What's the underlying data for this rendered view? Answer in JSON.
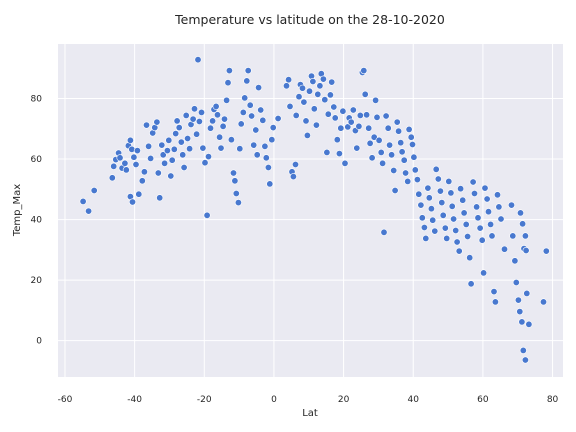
{
  "chart_data": {
    "type": "scatter",
    "title": "Temperature vs latitude on the 28-10-2020",
    "xlabel": "Lat",
    "ylabel": "Temp_Max",
    "xlim": [
      -62,
      83
    ],
    "ylim": [
      -12,
      98
    ],
    "xticks": [
      -60,
      -40,
      -20,
      0,
      20,
      40,
      60,
      80
    ],
    "yticks": [
      0,
      20,
      40,
      60,
      80
    ],
    "grid": true,
    "style": "seaborn-darkgrid",
    "colors": {
      "background": "#EAEAF2",
      "grid": "#FFFFFF",
      "point": "#4878CF",
      "point_edge": "#FFFFFF",
      "text": "#262626"
    },
    "points": [
      [
        -54.8,
        46
      ],
      [
        -53.2,
        42.8
      ],
      [
        -51.6,
        49.6
      ],
      [
        -46.4,
        53.8
      ],
      [
        -46,
        57.6
      ],
      [
        -45.4,
        59.8
      ],
      [
        -44.6,
        62
      ],
      [
        -44.2,
        60.4
      ],
      [
        -43.6,
        57
      ],
      [
        -42.8,
        58.6
      ],
      [
        -42.4,
        56.4
      ],
      [
        -41.8,
        64.4
      ],
      [
        -41.2,
        66.2
      ],
      [
        -40.8,
        63.2
      ],
      [
        -40.2,
        60.6
      ],
      [
        -39.6,
        58.2
      ],
      [
        -39.2,
        62.8
      ],
      [
        -41.2,
        47.6
      ],
      [
        -40.6,
        45.8
      ],
      [
        -38.8,
        48.4
      ],
      [
        -37.8,
        52.8
      ],
      [
        -37.2,
        55.8
      ],
      [
        -36.6,
        71.2
      ],
      [
        -36,
        64.2
      ],
      [
        -35.4,
        60.2
      ],
      [
        -34.8,
        68.6
      ],
      [
        -34.2,
        70.4
      ],
      [
        -33.6,
        72.2
      ],
      [
        -33.2,
        55.4
      ],
      [
        -32.8,
        47.2
      ],
      [
        -32.2,
        64.6
      ],
      [
        -31.8,
        61.4
      ],
      [
        -31.4,
        58.6
      ],
      [
        -30.6,
        62.8
      ],
      [
        -30.2,
        66.2
      ],
      [
        -29.6,
        54.4
      ],
      [
        -29.2,
        59.6
      ],
      [
        -28.6,
        63.2
      ],
      [
        -28.2,
        68.4
      ],
      [
        -27.8,
        72.6
      ],
      [
        -27.2,
        70.4
      ],
      [
        -26.6,
        65.6
      ],
      [
        -26.2,
        61.4
      ],
      [
        -25.8,
        57.2
      ],
      [
        -25.2,
        74.4
      ],
      [
        -24.8,
        66.8
      ],
      [
        -24.2,
        63.4
      ],
      [
        -23.8,
        71.4
      ],
      [
        -23.2,
        73.2
      ],
      [
        -22.8,
        76.6
      ],
      [
        -22.2,
        68.2
      ],
      [
        -21.8,
        92.8
      ],
      [
        -21.4,
        72.4
      ],
      [
        -20.8,
        75.4
      ],
      [
        -20.4,
        63.6
      ],
      [
        -19.8,
        58.8
      ],
      [
        -19.2,
        41.4
      ],
      [
        -18.8,
        60.8
      ],
      [
        -18.2,
        70.2
      ],
      [
        -17.6,
        72.6
      ],
      [
        -17.2,
        76.4
      ],
      [
        -16.6,
        77.4
      ],
      [
        -16.2,
        74.6
      ],
      [
        -15.6,
        67.2
      ],
      [
        -15.2,
        63.6
      ],
      [
        -14.6,
        70.8
      ],
      [
        -14.2,
        73.2
      ],
      [
        -13.6,
        79.4
      ],
      [
        -13.2,
        85.2
      ],
      [
        -12.8,
        89.2
      ],
      [
        -12.2,
        66.4
      ],
      [
        -11.6,
        55.4
      ],
      [
        -11.2,
        52.8
      ],
      [
        -10.8,
        48.6
      ],
      [
        -10.2,
        45.6
      ],
      [
        -9.8,
        63.4
      ],
      [
        -9.4,
        71.6
      ],
      [
        -8.8,
        75.4
      ],
      [
        -8.4,
        80.2
      ],
      [
        -7.8,
        85.8
      ],
      [
        -7.4,
        89.2
      ],
      [
        -6.8,
        77.8
      ],
      [
        -6.4,
        74.2
      ],
      [
        -5.8,
        64.6
      ],
      [
        -5.2,
        69.6
      ],
      [
        -4.8,
        61.4
      ],
      [
        -4.4,
        83.6
      ],
      [
        -3.8,
        76.2
      ],
      [
        -3.2,
        72.8
      ],
      [
        -2.6,
        64.2
      ],
      [
        -2.2,
        60.4
      ],
      [
        -1.6,
        57.2
      ],
      [
        -1.2,
        51.8
      ],
      [
        -0.6,
        66.4
      ],
      [
        -0.2,
        70.4
      ],
      [
        1.2,
        73.4
      ],
      [
        3.6,
        84.2
      ],
      [
        4.2,
        86.2
      ],
      [
        4.6,
        77.4
      ],
      [
        5.2,
        55.8
      ],
      [
        5.6,
        54.2
      ],
      [
        6.2,
        58.2
      ],
      [
        6.4,
        74.4
      ],
      [
        7.2,
        80.6
      ],
      [
        7.6,
        84.6
      ],
      [
        8.2,
        83.4
      ],
      [
        8.6,
        78.8
      ],
      [
        9.2,
        72.6
      ],
      [
        9.6,
        67.8
      ],
      [
        10.2,
        82.4
      ],
      [
        10.8,
        87.4
      ],
      [
        11.2,
        85.6
      ],
      [
        11.6,
        76.6
      ],
      [
        12.2,
        71.2
      ],
      [
        12.6,
        81.4
      ],
      [
        13.2,
        84.2
      ],
      [
        13.6,
        88.2
      ],
      [
        14.2,
        86.4
      ],
      [
        14.6,
        79.6
      ],
      [
        15.2,
        62.2
      ],
      [
        15.6,
        74.8
      ],
      [
        16.2,
        81.2
      ],
      [
        16.6,
        85.4
      ],
      [
        17.2,
        77.2
      ],
      [
        17.6,
        73.6
      ],
      [
        18.2,
        66.4
      ],
      [
        18.8,
        61.8
      ],
      [
        19.2,
        70.2
      ],
      [
        19.8,
        75.8
      ],
      [
        20.4,
        58.6
      ],
      [
        21.2,
        70.6
      ],
      [
        21.6,
        73.6
      ],
      [
        22.2,
        72.2
      ],
      [
        22.8,
        76.2
      ],
      [
        23.4,
        69.4
      ],
      [
        23.8,
        63.6
      ],
      [
        24.4,
        70.8
      ],
      [
        24.8,
        74.4
      ],
      [
        25.4,
        88.6
      ],
      [
        25.8,
        89.2
      ],
      [
        26.2,
        81.4
      ],
      [
        26.6,
        74.6
      ],
      [
        27.2,
        70.2
      ],
      [
        27.6,
        65.2
      ],
      [
        28.2,
        60.4
      ],
      [
        28.8,
        67.2
      ],
      [
        29.2,
        79.4
      ],
      [
        29.6,
        73.8
      ],
      [
        30.2,
        66.2
      ],
      [
        30.8,
        62.2
      ],
      [
        31.2,
        58.6
      ],
      [
        31.6,
        35.8
      ],
      [
        32.2,
        74.2
      ],
      [
        32.8,
        70.2
      ],
      [
        33.2,
        64.6
      ],
      [
        33.8,
        61.4
      ],
      [
        34.4,
        56.2
      ],
      [
        34.8,
        49.6
      ],
      [
        35.4,
        72.2
      ],
      [
        35.8,
        69.2
      ],
      [
        36.4,
        65.4
      ],
      [
        36.8,
        62.4
      ],
      [
        37.4,
        59.6
      ],
      [
        37.8,
        55.4
      ],
      [
        38.4,
        52.6
      ],
      [
        38.8,
        69.8
      ],
      [
        39.4,
        67.2
      ],
      [
        39.8,
        64.8
      ],
      [
        40.2,
        60.6
      ],
      [
        40.6,
        56.4
      ],
      [
        41.2,
        53.2
      ],
      [
        41.6,
        48.4
      ],
      [
        42.2,
        44.8
      ],
      [
        42.6,
        40.6
      ],
      [
        43.2,
        37.4
      ],
      [
        43.6,
        33.8
      ],
      [
        44.2,
        50.4
      ],
      [
        44.6,
        47.2
      ],
      [
        45.2,
        43.6
      ],
      [
        45.6,
        39.8
      ],
      [
        46.2,
        36.2
      ],
      [
        46.6,
        56.6
      ],
      [
        47.2,
        53.4
      ],
      [
        47.8,
        49.4
      ],
      [
        48.2,
        45.6
      ],
      [
        48.6,
        41.4
      ],
      [
        49.2,
        37.2
      ],
      [
        49.6,
        33.8
      ],
      [
        50.2,
        52.6
      ],
      [
        50.8,
        48.8
      ],
      [
        51.2,
        44.4
      ],
      [
        51.6,
        40.2
      ],
      [
        52.2,
        36.4
      ],
      [
        52.6,
        32.6
      ],
      [
        53.2,
        29.6
      ],
      [
        53.6,
        50.2
      ],
      [
        54.2,
        46.4
      ],
      [
        54.6,
        42.2
      ],
      [
        55.2,
        38.4
      ],
      [
        55.6,
        34.4
      ],
      [
        56.2,
        27.4
      ],
      [
        56.6,
        18.8
      ],
      [
        57.2,
        52.4
      ],
      [
        57.6,
        48.6
      ],
      [
        58.2,
        44.2
      ],
      [
        58.6,
        40.6
      ],
      [
        59.2,
        37.2
      ],
      [
        59.8,
        33.2
      ],
      [
        60.2,
        22.4
      ],
      [
        60.6,
        50.4
      ],
      [
        61.2,
        46.8
      ],
      [
        61.6,
        42.6
      ],
      [
        62.2,
        38.4
      ],
      [
        62.6,
        34.6
      ],
      [
        63.2,
        16.2
      ],
      [
        63.6,
        12.8
      ],
      [
        64.2,
        48.2
      ],
      [
        64.6,
        44.2
      ],
      [
        65.2,
        40.2
      ],
      [
        66.2,
        30.2
      ],
      [
        68.2,
        44.8
      ],
      [
        68.6,
        34.6
      ],
      [
        69.2,
        26.4
      ],
      [
        69.6,
        19.2
      ],
      [
        70.2,
        13.4
      ],
      [
        70.6,
        9.6
      ],
      [
        71.2,
        6.2
      ],
      [
        71.6,
        -3.2
      ],
      [
        72.2,
        -6.4
      ],
      [
        72.6,
        15.6
      ],
      [
        73.2,
        5.4
      ],
      [
        70.8,
        42.2
      ],
      [
        71.4,
        38.6
      ],
      [
        72.2,
        34.6
      ],
      [
        71.8,
        30.4
      ],
      [
        72.4,
        29.8
      ],
      [
        77.4,
        12.8
      ],
      [
        78.2,
        29.6
      ]
    ]
  }
}
